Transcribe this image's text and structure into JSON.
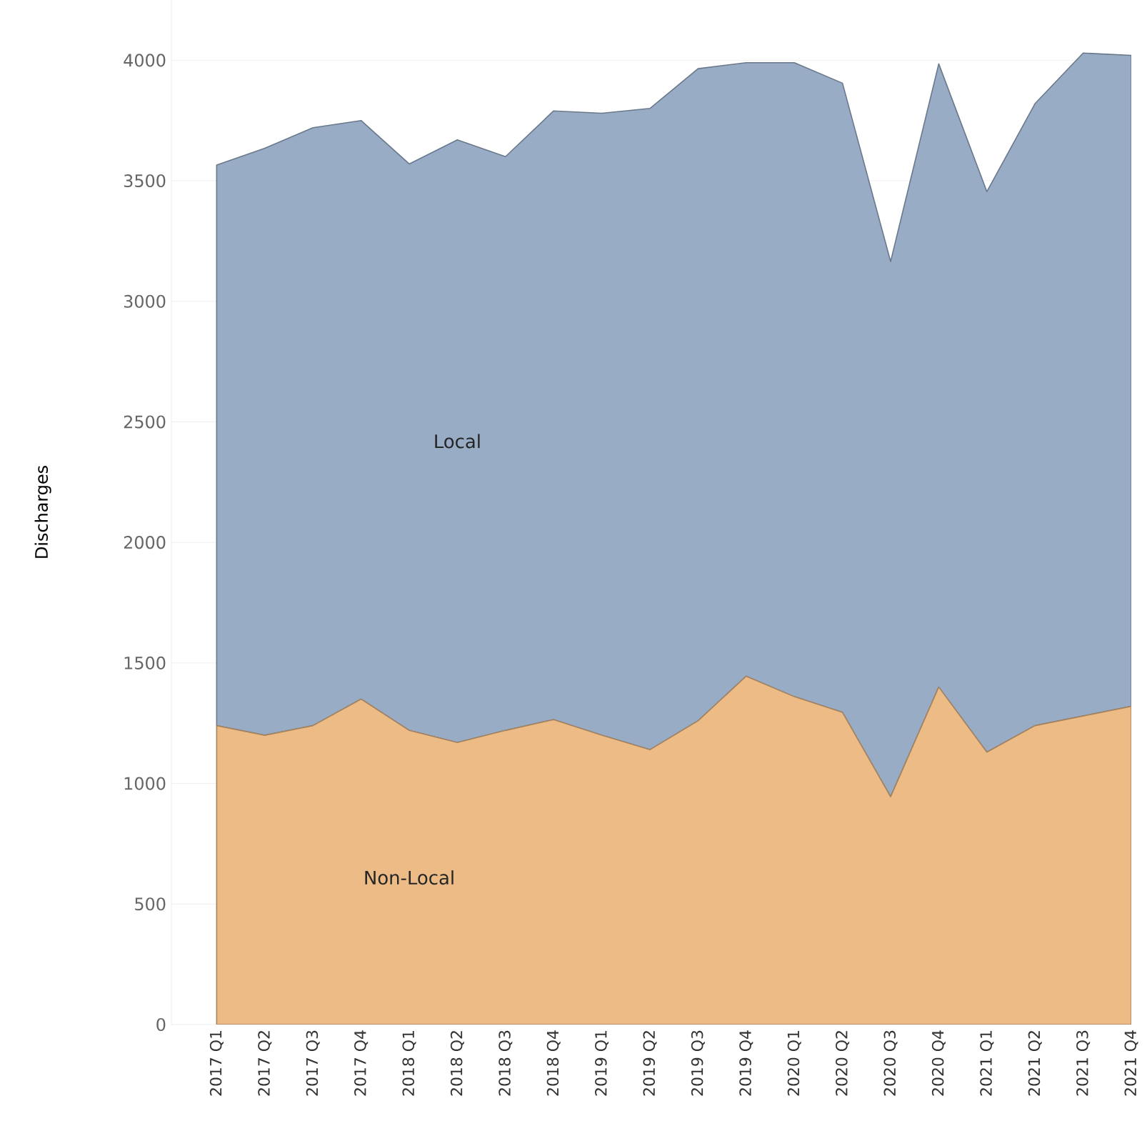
{
  "chart_data": {
    "type": "area",
    "stacked": true,
    "ylabel": "Discharges",
    "categories": [
      "2017 Q1",
      "2017 Q2",
      "2017 Q3",
      "2017 Q4",
      "2018 Q1",
      "2018 Q2",
      "2018 Q3",
      "2018 Q4",
      "2019 Q1",
      "2019 Q2",
      "2019 Q3",
      "2019 Q4",
      "2020 Q1",
      "2020 Q2",
      "2020 Q3",
      "2020 Q4",
      "2021 Q1",
      "2021 Q2",
      "2021 Q3",
      "2021 Q4"
    ],
    "series": [
      {
        "name": "Non-Local",
        "color": "#ecbb86",
        "values": [
          1240,
          1200,
          1240,
          1350,
          1220,
          1170,
          1220,
          1265,
          1200,
          1140,
          1260,
          1445,
          1360,
          1295,
          945,
          1400,
          1130,
          1240,
          1280,
          1320
        ]
      },
      {
        "name": "Local",
        "color": "#98acc6",
        "values": [
          2325,
          2435,
          2480,
          2400,
          2350,
          2500,
          2380,
          2525,
          2580,
          2660,
          2705,
          2545,
          2630,
          2610,
          2220,
          2585,
          2325,
          2580,
          2750,
          2700
        ]
      }
    ],
    "ylim": [
      0,
      4250
    ],
    "yticks": [
      0,
      500,
      1000,
      1500,
      2000,
      2500,
      3000,
      3500,
      4000
    ],
    "grid": "y",
    "legend": false
  }
}
